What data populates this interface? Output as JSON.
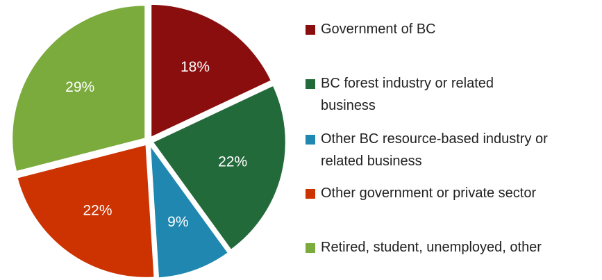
{
  "chart_data": {
    "type": "pie",
    "categories": [
      "Government of BC",
      "BC forest industry or related business",
      "Other BC resource-based industry or related business",
      "Other government or private sector",
      "Retired, student, unemployed, other"
    ],
    "values": [
      18,
      22,
      9,
      22,
      29
    ],
    "value_labels": [
      "18%",
      "22%",
      "9%",
      "22%",
      "29%"
    ],
    "colors": [
      "#8b0e0e",
      "#236a3b",
      "#1f87b0",
      "#cc3300",
      "#7aab3c"
    ],
    "legend": "right"
  }
}
